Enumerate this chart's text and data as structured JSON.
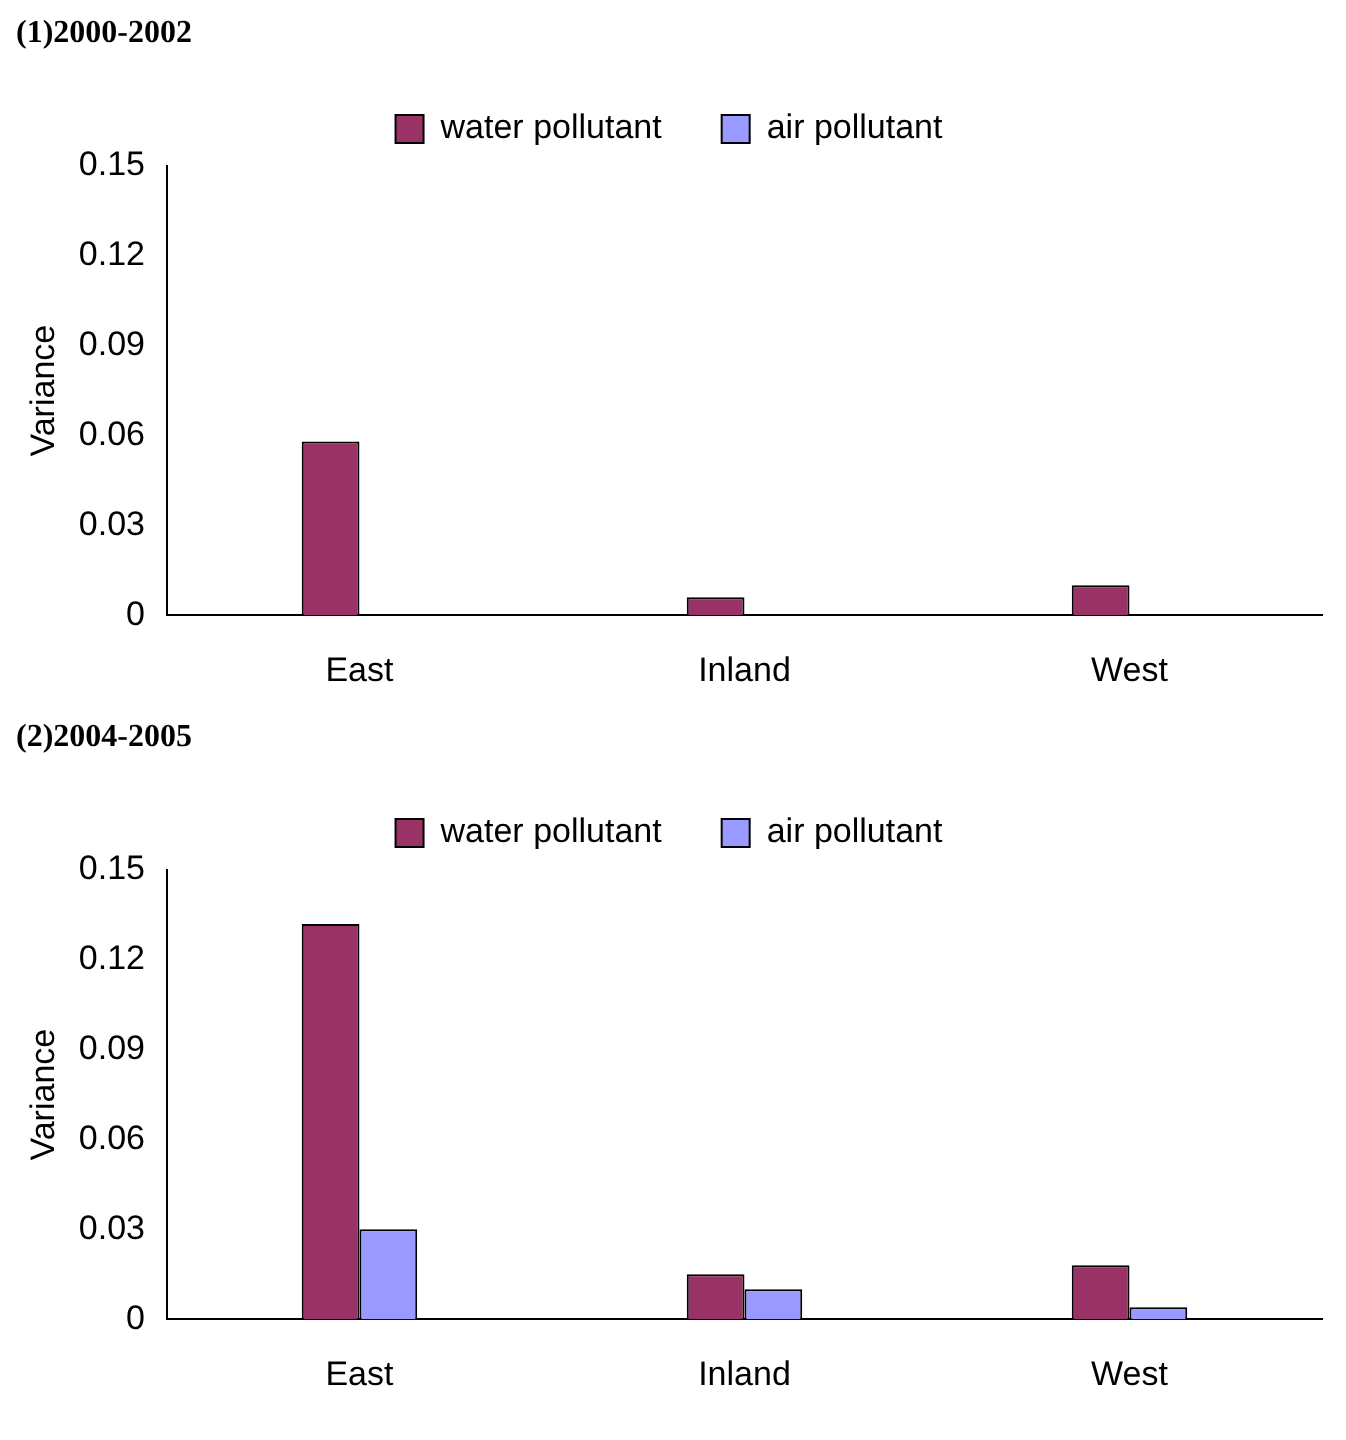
{
  "chart_data": [
    {
      "type": "bar",
      "title": "(1)2000-2002",
      "ylabel": "Variance",
      "categories": [
        "East",
        "Inland",
        "West"
      ],
      "series": [
        {
          "name": "water pollutant",
          "color": "#993366",
          "values": [
            0.058,
            0.006,
            0.01
          ]
        },
        {
          "name": "air pollutant",
          "color": "#9999ff",
          "values": [
            null,
            null,
            null
          ]
        }
      ],
      "ylim": [
        0,
        0.15
      ],
      "yticks": [
        0,
        0.03,
        0.06,
        0.09,
        0.12,
        0.15
      ],
      "grid": false,
      "legend": "top"
    },
    {
      "type": "bar",
      "title": "(2)2004-2005",
      "ylabel": "Variance",
      "categories": [
        "East",
        "Inland",
        "West"
      ],
      "series": [
        {
          "name": "water pollutant",
          "color": "#993366",
          "values": [
            0.132,
            0.015,
            0.018
          ]
        },
        {
          "name": "air pollutant",
          "color": "#9999ff",
          "values": [
            0.03,
            0.01,
            0.004
          ]
        }
      ],
      "ylim": [
        0,
        0.15
      ],
      "yticks": [
        0,
        0.03,
        0.06,
        0.09,
        0.12,
        0.15
      ],
      "grid": false,
      "legend": "top"
    }
  ]
}
